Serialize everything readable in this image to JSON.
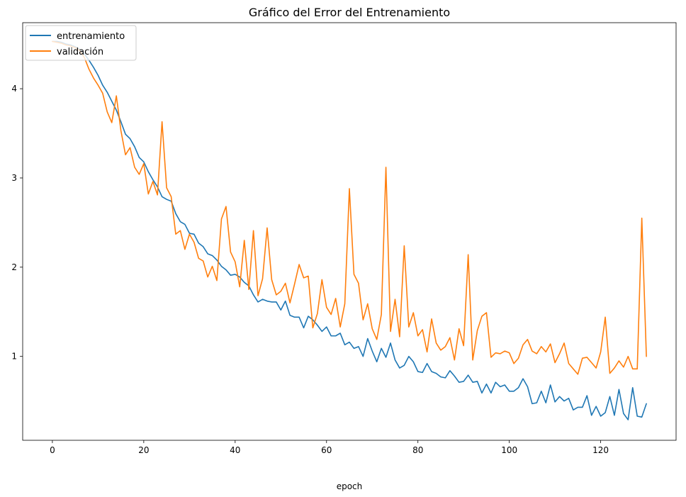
{
  "chart_data": {
    "type": "line",
    "title": "Gráfico del Error del Entrenamiento",
    "xlabel": "epoch",
    "ylabel": "",
    "xlim": [
      -6.5,
      136.5
    ],
    "ylim": [
      0.06,
      4.74
    ],
    "xticks": [
      0,
      20,
      40,
      60,
      80,
      100,
      120
    ],
    "yticks": [
      1,
      2,
      3,
      4
    ],
    "grid": false,
    "legend": "top-left",
    "series": [
      {
        "name": "entrenamiento",
        "color": "#1f77b4",
        "values": [
          4.53,
          4.53,
          4.52,
          4.5,
          4.49,
          4.47,
          4.44,
          4.39,
          4.32,
          4.24,
          4.15,
          4.04,
          3.96,
          3.86,
          3.76,
          3.63,
          3.49,
          3.44,
          3.35,
          3.23,
          3.18,
          3.07,
          2.98,
          2.9,
          2.79,
          2.76,
          2.74,
          2.6,
          2.51,
          2.48,
          2.38,
          2.37,
          2.27,
          2.23,
          2.15,
          2.13,
          2.08,
          2.01,
          1.97,
          1.91,
          1.92,
          1.89,
          1.83,
          1.79,
          1.69,
          1.61,
          1.64,
          1.62,
          1.61,
          1.61,
          1.52,
          1.62,
          1.46,
          1.44,
          1.44,
          1.32,
          1.45,
          1.41,
          1.35,
          1.28,
          1.33,
          1.23,
          1.23,
          1.26,
          1.13,
          1.16,
          1.09,
          1.11,
          1.0,
          1.2,
          1.06,
          0.94,
          1.09,
          0.99,
          1.15,
          0.96,
          0.87,
          0.9,
          1.0,
          0.94,
          0.83,
          0.82,
          0.92,
          0.83,
          0.81,
          0.77,
          0.76,
          0.84,
          0.78,
          0.71,
          0.72,
          0.79,
          0.71,
          0.72,
          0.59,
          0.69,
          0.59,
          0.71,
          0.66,
          0.68,
          0.61,
          0.61,
          0.65,
          0.75,
          0.66,
          0.47,
          0.48,
          0.61,
          0.48,
          0.68,
          0.49,
          0.55,
          0.5,
          0.53,
          0.4,
          0.43,
          0.43,
          0.56,
          0.34,
          0.44,
          0.33,
          0.37,
          0.55,
          0.34,
          0.63,
          0.36,
          0.29,
          0.65,
          0.33,
          0.32,
          0.47
        ]
      },
      {
        "name": "validación",
        "color": "#ff7f0e",
        "values": [
          4.53,
          4.52,
          4.51,
          4.49,
          4.48,
          4.46,
          4.43,
          4.35,
          4.22,
          4.12,
          4.04,
          3.95,
          3.74,
          3.62,
          3.92,
          3.53,
          3.26,
          3.34,
          3.12,
          3.04,
          3.16,
          2.82,
          2.96,
          2.81,
          3.63,
          2.89,
          2.79,
          2.37,
          2.41,
          2.2,
          2.37,
          2.28,
          2.1,
          2.07,
          1.89,
          2.01,
          1.85,
          2.54,
          2.68,
          2.17,
          2.06,
          1.78,
          2.3,
          1.75,
          2.41,
          1.68,
          1.87,
          2.44,
          1.86,
          1.69,
          1.73,
          1.82,
          1.6,
          1.81,
          2.03,
          1.88,
          1.9,
          1.32,
          1.48,
          1.86,
          1.55,
          1.47,
          1.65,
          1.33,
          1.59,
          2.88,
          1.92,
          1.82,
          1.41,
          1.59,
          1.31,
          1.19,
          1.47,
          3.12,
          1.28,
          1.64,
          1.22,
          2.24,
          1.33,
          1.49,
          1.23,
          1.3,
          1.05,
          1.42,
          1.15,
          1.07,
          1.11,
          1.21,
          0.96,
          1.31,
          1.12,
          2.14,
          0.96,
          1.29,
          1.45,
          1.49,
          0.99,
          1.04,
          1.03,
          1.06,
          1.04,
          0.92,
          0.98,
          1.13,
          1.19,
          1.06,
          1.03,
          1.11,
          1.05,
          1.14,
          0.93,
          1.03,
          1.15,
          0.92,
          0.86,
          0.8,
          0.98,
          0.99,
          0.93,
          0.87,
          1.05,
          1.44,
          0.81,
          0.87,
          0.95,
          0.88,
          1.0,
          0.86,
          0.86,
          2.55,
          1.0
        ]
      }
    ]
  }
}
